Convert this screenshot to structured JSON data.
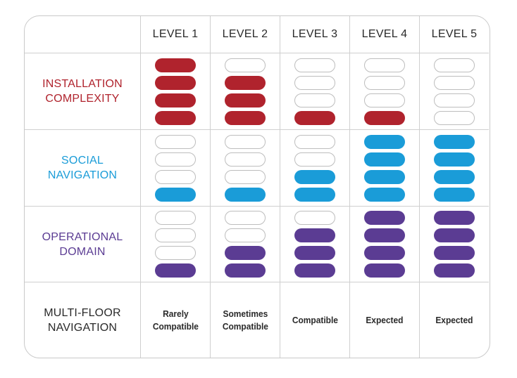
{
  "colors": {
    "installation": "#b0232d",
    "social": "#1a9cd8",
    "operational": "#5b3c93"
  },
  "header": {
    "levels": [
      "LEVEL 1",
      "LEVEL 2",
      "LEVEL 3",
      "LEVEL 4",
      "LEVEL 5"
    ]
  },
  "rows": [
    {
      "key": "installation",
      "label": "INSTALLATION\nCOMPLEXITY",
      "color": "#b0232d",
      "filled_out_of_4": [
        4,
        3,
        1,
        1,
        0
      ]
    },
    {
      "key": "social",
      "label": "SOCIAL\nNAVIGATION",
      "color": "#1a9cd8",
      "filled_out_of_4": [
        1,
        1,
        2,
        4,
        4
      ]
    },
    {
      "key": "operational",
      "label": "OPERATIONAL\nDOMAIN",
      "color": "#5b3c93",
      "filled_out_of_4": [
        1,
        2,
        3,
        4,
        4
      ]
    }
  ],
  "multi_floor": {
    "label": "MULTI-FLOOR\nNAVIGATION",
    "values": [
      "Rarely\nCompatible",
      "Sometimes\nCompatible",
      "Compatible",
      "Expected",
      "Expected"
    ]
  }
}
